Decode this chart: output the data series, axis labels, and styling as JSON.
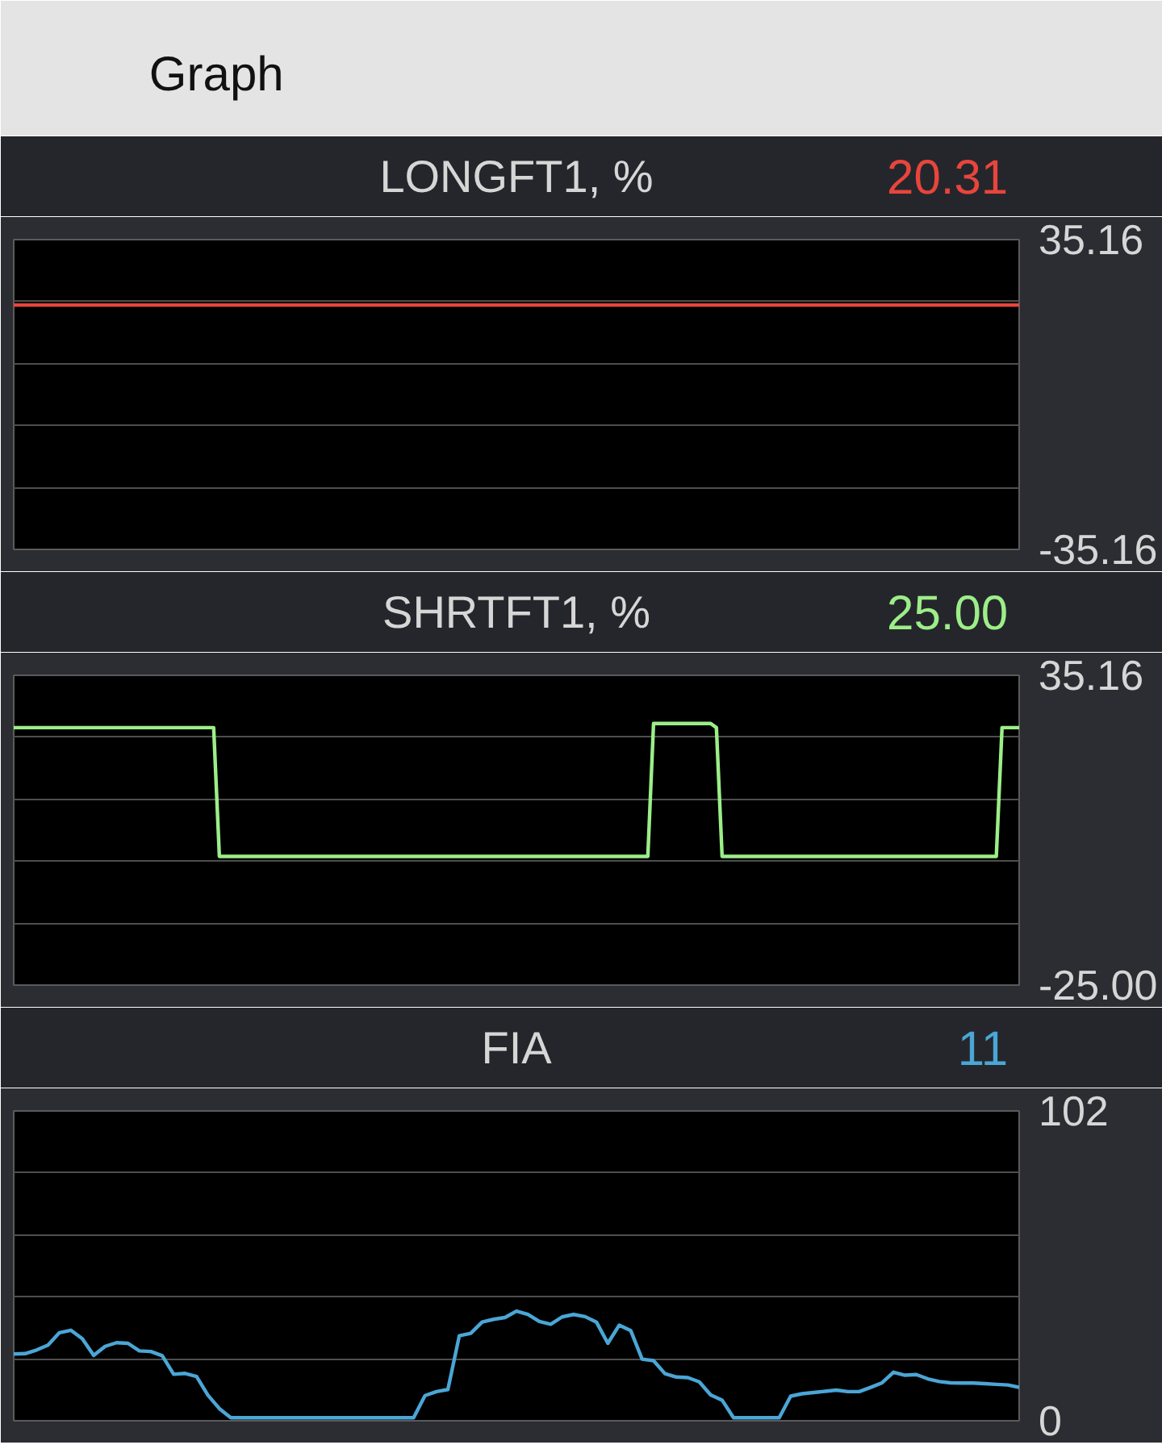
{
  "chart_data": [
    {
      "type": "other",
      "title": "Graph"
    },
    {
      "type": "line",
      "title": "LONGFT1, %",
      "annotations": [
        "20.31"
      ],
      "categories": [
        null,
        null,
        null,
        null,
        null,
        null,
        null,
        null,
        null,
        null,
        null,
        null,
        null,
        null,
        null,
        null,
        null,
        null,
        null,
        null,
        null,
        null,
        null,
        null,
        null,
        null,
        null,
        null,
        null,
        null,
        null,
        null,
        null,
        null,
        null,
        null,
        null,
        null,
        null,
        null,
        null,
        null,
        null,
        null,
        null,
        null,
        null,
        null,
        null,
        null,
        null,
        null,
        null,
        null,
        null,
        null,
        null,
        null,
        null,
        null,
        null,
        null,
        null,
        null,
        null,
        null,
        null,
        null,
        null,
        null,
        null,
        null,
        null,
        null,
        null,
        null,
        null,
        null,
        null,
        null,
        null,
        null,
        null,
        null,
        null,
        null,
        null,
        null,
        null
      ],
      "series": [
        {
          "color": "#e8453c",
          "values": [
            20.3,
            20.3,
            20.3,
            20.3,
            20.3,
            20.3,
            20.3,
            20.3,
            20.3,
            20.3,
            20.3,
            20.3,
            20.3,
            20.3,
            20.3,
            20.3,
            20.3,
            20.3,
            20.3,
            20.3,
            20.3,
            20.3,
            20.3,
            20.3,
            20.3,
            20.3,
            20.3,
            20.3,
            20.3,
            20.3,
            20.3,
            20.3,
            20.3,
            20.3,
            20.3,
            20.3,
            20.3,
            20.3,
            20.3,
            20.3,
            20.3,
            20.3,
            20.3,
            20.3,
            20.3,
            20.3,
            20.3,
            20.3,
            20.3,
            20.3,
            20.3,
            20.3,
            20.3,
            20.3,
            20.3,
            20.3,
            20.3,
            20.3,
            20.3,
            20.3,
            20.3,
            20.3,
            20.3,
            20.3,
            20.3,
            20.3,
            20.3,
            20.3,
            20.3,
            20.3,
            20.3,
            20.3,
            20.3,
            20.3,
            20.3,
            20.3,
            20.3,
            20.3,
            20.3,
            20.3,
            20.3,
            20.3,
            20.3,
            20.3,
            20.3,
            20.3,
            20.3,
            20.3,
            20.3
          ]
        }
      ],
      "ylim": [
        -35.16,
        35.16
      ],
      "yticks": [
        -35.16,
        {
          "value": -21.1,
          "label": null
        },
        {
          "value": -7.0,
          "label": null
        },
        {
          "value": 7.0,
          "label": null
        },
        {
          "value": 21.1,
          "label": null
        },
        35.16
      ],
      "grid": "y",
      "tick_labels": "y"
    },
    {
      "type": "line",
      "title": "SHRTFT1, %",
      "annotations": [
        "25.00"
      ],
      "categories": [
        null,
        null,
        null,
        null,
        null,
        null,
        null,
        null,
        null,
        null,
        null,
        null,
        null,
        null,
        null,
        null,
        null,
        null,
        null,
        null,
        null,
        null,
        null,
        null,
        null,
        null,
        null,
        null,
        null,
        null,
        null,
        null,
        null,
        null,
        null,
        null,
        null,
        null,
        null,
        null,
        null,
        null,
        null,
        null,
        null,
        null,
        null,
        null,
        null,
        null,
        null,
        null,
        null,
        null,
        null,
        null,
        null,
        null,
        null,
        null,
        null,
        null,
        null,
        null,
        null,
        null,
        null,
        null,
        null,
        null,
        null,
        null,
        null,
        null,
        null,
        null,
        null,
        null,
        null,
        null,
        null,
        null,
        null,
        null,
        null,
        null,
        null,
        null,
        null,
        null,
        null,
        null,
        null,
        null,
        null,
        null,
        null,
        null,
        null,
        null,
        null,
        null,
        null,
        null,
        null,
        null,
        null,
        null,
        null,
        null,
        null,
        null,
        null,
        null,
        null,
        null,
        null,
        null,
        null,
        null,
        null,
        null,
        null,
        null,
        null,
        null,
        null,
        null,
        null,
        null,
        null,
        null,
        null,
        null,
        null,
        null,
        null,
        null,
        null,
        null,
        null,
        null,
        null,
        null,
        null,
        null,
        null,
        null,
        null,
        null,
        null,
        null,
        null,
        null,
        null,
        null,
        null,
        null,
        null,
        null,
        null,
        null,
        null,
        null,
        null,
        null,
        null,
        null,
        null,
        null,
        null,
        null,
        null,
        null,
        null,
        null,
        null
      ],
      "series": [
        {
          "color": "#9cee88",
          "values": [
            25,
            25,
            25,
            25,
            25,
            25,
            25,
            25,
            25,
            25,
            25,
            25,
            25,
            25,
            25,
            25,
            25,
            25,
            25,
            25,
            25,
            25,
            25,
            25,
            25,
            25,
            25,
            25,
            25,
            25,
            25,
            25,
            25,
            25,
            25,
            25,
            0,
            0,
            0,
            0,
            0,
            0,
            0,
            0,
            0,
            0,
            0,
            0,
            0,
            0,
            0,
            0,
            0,
            0,
            0,
            0,
            0,
            0,
            0,
            0,
            0,
            0,
            0,
            0,
            0,
            0,
            0,
            0,
            0,
            0,
            0,
            0,
            0,
            0,
            0,
            0,
            0,
            0,
            0,
            0,
            0,
            0,
            0,
            0,
            0,
            0,
            0,
            0,
            0,
            0,
            0,
            0,
            0,
            0,
            0,
            0,
            0,
            0,
            0,
            0,
            0,
            0,
            0,
            0,
            0,
            0,
            0,
            0,
            0,
            0,
            0,
            0,
            25.8,
            25.8,
            25.8,
            25.8,
            25.8,
            25.8,
            25.8,
            25.8,
            25.8,
            25.8,
            25.8,
            25,
            0,
            0,
            0,
            0,
            0,
            0,
            0,
            0,
            0,
            0,
            0,
            0,
            0,
            0,
            0,
            0,
            0,
            0,
            0,
            0,
            0,
            0,
            0,
            0,
            0,
            0,
            0,
            0,
            0,
            0,
            0,
            0,
            0,
            0,
            0,
            0,
            0,
            0,
            0,
            0,
            0,
            0,
            0,
            0,
            0,
            0,
            0,
            0,
            0,
            25,
            25,
            25,
            25
          ]
        }
      ],
      "ylim": [
        -25,
        35.16
      ],
      "yticks": [
        {
          "value": -25,
          "label": "-25.00"
        },
        {
          "value": -13.0,
          "label": null
        },
        {
          "value": -0.9,
          "label": null
        },
        {
          "value": 11.1,
          "label": null
        },
        {
          "value": 23.1,
          "label": null
        },
        35.16
      ],
      "grid": "y",
      "tick_labels": "y"
    },
    {
      "type": "line",
      "title": "FIA",
      "annotations": [
        "11"
      ],
      "categories": [
        null,
        null,
        null,
        null,
        null,
        null,
        null,
        null,
        null,
        null,
        null,
        null,
        null,
        null,
        null,
        null,
        null,
        null,
        null,
        null,
        null,
        null,
        null,
        null,
        null,
        null,
        null,
        null,
        null,
        null,
        null,
        null,
        null,
        null,
        null,
        null,
        null,
        null,
        null,
        null,
        null,
        null,
        null,
        null,
        null,
        null,
        null,
        null,
        null,
        null,
        null,
        null,
        null,
        null,
        null,
        null,
        null,
        null,
        null,
        null,
        null,
        null,
        null,
        null,
        null,
        null,
        null,
        null,
        null,
        null,
        null,
        null,
        null,
        null,
        null,
        null,
        null,
        null,
        null,
        null,
        null,
        null,
        null,
        null,
        null,
        null,
        null,
        null,
        null
      ],
      "series": [
        {
          "color": "#4aa6d6",
          "values": [
            22.0,
            22.1,
            23.3,
            24.9,
            29,
            29.8,
            27,
            21.5,
            24.5,
            25.7,
            25.5,
            23.0,
            22.8,
            21.4,
            15.3,
            15.6,
            14.6,
            8.4,
            4,
            1,
            1,
            1,
            1,
            1,
            1,
            1,
            1,
            1,
            1,
            1,
            1,
            1,
            1,
            1,
            1,
            1,
            8.3,
            9.6,
            10.3,
            28,
            28.8,
            32.5,
            33.4,
            34,
            36.1,
            35,
            32.7,
            31.8,
            34.2,
            35,
            34.3,
            32.5,
            25.5,
            31.5,
            29.7,
            20.3,
            19.8,
            15.5,
            14.4,
            14.2,
            12.8,
            8.5,
            6.8,
            1,
            1,
            1,
            1,
            1,
            8.1,
            8.9,
            9.3,
            9.7,
            10.1,
            9.6,
            9.6,
            11.0,
            12.5,
            16.0,
            15.0,
            15.2,
            13.8,
            12.9,
            12.5,
            12.4,
            12.4,
            12.2,
            12.0,
            11.8,
            11
          ]
        }
      ],
      "ylim": [
        0,
        102
      ],
      "yticks": [
        0,
        {
          "value": 20.4,
          "label": null
        },
        {
          "value": 40.8,
          "label": null
        },
        {
          "value": 61.2,
          "label": null
        },
        {
          "value": 81.6,
          "label": null
        },
        102
      ],
      "grid": "y",
      "tick_labels": "y"
    }
  ]
}
